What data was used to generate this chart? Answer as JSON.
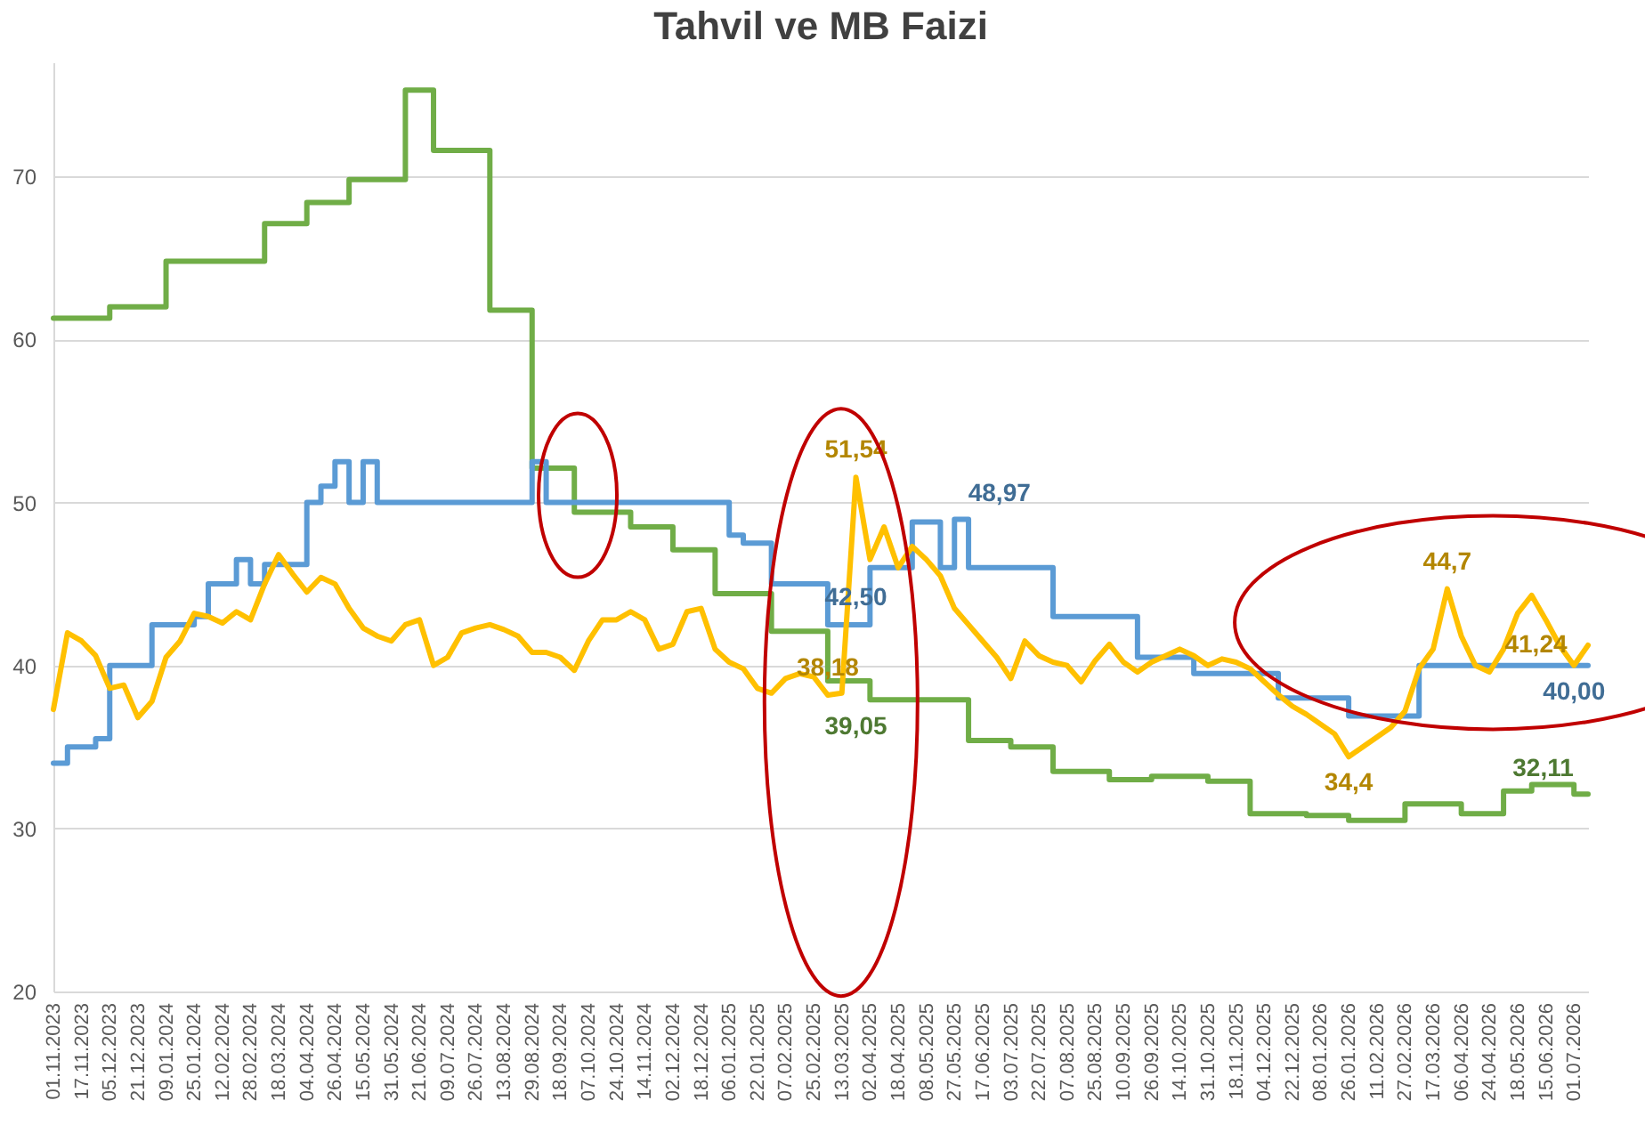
{
  "chart_data": {
    "type": "line",
    "title": "Tahvil ve MB Faizi",
    "categories": [
      "01.11.2023",
      null,
      "17.11.2023",
      null,
      "05.12.2023",
      null,
      "21.12.2023",
      null,
      "09.01.2024",
      null,
      "25.01.2024",
      null,
      "12.02.2024",
      null,
      "28.02.2024",
      null,
      "18.03.2024",
      null,
      "04.04.2024",
      null,
      "26.04.2024",
      null,
      "15.05.2024",
      null,
      "31.05.2024",
      null,
      "21.06.2024",
      null,
      "09.07.2024",
      null,
      "26.07.2024",
      null,
      "13.08.2024",
      null,
      "29.08.2024",
      null,
      "18.09.2024",
      null,
      "07.10.2024",
      null,
      "24.10.2024",
      null,
      "14.11.2024",
      null,
      "02.12.2024",
      null,
      "18.12.2024",
      null,
      "06.01.2025",
      null,
      "22.01.2025",
      null,
      "07.02.2025",
      null,
      "25.02.2025",
      null,
      "13.03.2025",
      null,
      "02.04.2025",
      null,
      "18.04.2025",
      null,
      "08.05.2025",
      null,
      "27.05.2025",
      null,
      "17.06.2025",
      null,
      "03.07.2025",
      null,
      "22.07.2025",
      null,
      "07.08.2025",
      null,
      "25.08.2025",
      null,
      "10.09.2025",
      null,
      "26.09.2025",
      null,
      "14.10.2025",
      null,
      "31.10.2025",
      null,
      "18.11.2025",
      null,
      "04.12.2025",
      null,
      "22.12.2025",
      null,
      "08.01.2026",
      null,
      "26.01.2026",
      null,
      "11.02.2026",
      null,
      "27.02.2026",
      null,
      "17.03.2026",
      null,
      "06.04.2026",
      null,
      "24.04.2026",
      null,
      "18.05.2026",
      null,
      "15.06.2026",
      null,
      "01.07.2026",
      null
    ],
    "series": [
      {
        "type": "step",
        "color": "#70ad47",
        "values": [
          61.3,
          61.3,
          61.3,
          61.3,
          62.0,
          62.0,
          62.0,
          62.0,
          64.8,
          64.8,
          64.8,
          64.8,
          64.8,
          64.8,
          64.8,
          67.1,
          67.1,
          67.1,
          68.4,
          68.4,
          68.4,
          69.8,
          69.8,
          69.8,
          69.8,
          75.3,
          75.3,
          71.6,
          71.6,
          71.6,
          71.6,
          61.8,
          61.8,
          61.8,
          52.1,
          52.1,
          52.1,
          49.4,
          49.4,
          49.4,
          49.4,
          48.5,
          48.5,
          48.5,
          47.1,
          47.1,
          47.1,
          44.4,
          44.4,
          44.4,
          44.4,
          42.1,
          42.1,
          42.1,
          42.1,
          39.05,
          39.05,
          39.05,
          37.9,
          37.9,
          37.9,
          37.9,
          37.9,
          37.9,
          37.9,
          35.4,
          35.4,
          35.4,
          35.0,
          35.0,
          35.0,
          33.5,
          33.5,
          33.5,
          33.5,
          33.0,
          33.0,
          33.0,
          33.2,
          33.2,
          33.2,
          33.2,
          32.9,
          32.9,
          32.9,
          30.9,
          30.9,
          30.9,
          30.9,
          30.8,
          30.8,
          30.8,
          30.5,
          30.5,
          30.5,
          30.5,
          31.5,
          31.5,
          31.5,
          31.5,
          30.9,
          30.9,
          30.9,
          32.3,
          32.3,
          32.7,
          32.7,
          32.7,
          32.11,
          32.11
        ],
        "value_labels": [
          null,
          null,
          null,
          null,
          null,
          null,
          null,
          null,
          null,
          null,
          null,
          null,
          null,
          null,
          null,
          null,
          null,
          null,
          null,
          null,
          null,
          null,
          null,
          null,
          null,
          null,
          null,
          null,
          null,
          null,
          null,
          null,
          null,
          null,
          null,
          null,
          null,
          null,
          null,
          null,
          null,
          null,
          null,
          null,
          null,
          null,
          null,
          null,
          null,
          null,
          null,
          null,
          null,
          null,
          null,
          null,
          null,
          "39,05",
          null,
          null,
          null,
          null,
          null,
          null,
          null,
          null,
          null,
          null,
          null,
          null,
          null,
          null,
          null,
          null,
          null,
          null,
          null,
          null,
          null,
          null,
          null,
          null,
          null,
          null,
          null,
          null,
          null,
          null,
          null,
          null,
          null,
          null,
          null,
          null,
          null,
          null,
          null,
          null,
          null,
          null,
          null,
          null,
          null,
          null,
          null,
          null,
          null,
          null,
          null,
          "32,11"
        ]
      },
      {
        "type": "step",
        "color": "#5b9bd5",
        "values": [
          34.0,
          35.0,
          35.0,
          35.5,
          40.0,
          40.0,
          40.0,
          42.5,
          42.5,
          42.5,
          43.0,
          45.0,
          45.0,
          46.5,
          45.0,
          46.2,
          46.2,
          46.2,
          50.0,
          51.0,
          52.5,
          50.0,
          52.5,
          50.0,
          50.0,
          50.0,
          50.0,
          50.0,
          50.0,
          50.0,
          50.0,
          50.0,
          50.0,
          50.0,
          52.5,
          50.0,
          50.0,
          50.0,
          50.0,
          50.0,
          50.0,
          50.0,
          50.0,
          50.0,
          50.0,
          50.0,
          50.0,
          50.0,
          48.0,
          47.5,
          47.5,
          45.0,
          45.0,
          45.0,
          45.0,
          42.5,
          42.5,
          42.5,
          46.0,
          46.0,
          46.0,
          48.8,
          48.8,
          46.0,
          48.97,
          46.0,
          46.0,
          46.0,
          46.0,
          46.0,
          46.0,
          43.0,
          43.0,
          43.0,
          43.0,
          43.0,
          43.0,
          40.5,
          40.5,
          40.5,
          40.5,
          39.5,
          39.5,
          39.5,
          39.5,
          39.5,
          39.5,
          38.0,
          38.0,
          38.0,
          38.0,
          38.0,
          36.9,
          36.9,
          36.9,
          36.9,
          36.9,
          40.0,
          40.0,
          40.0,
          40.0,
          40.0,
          40.0,
          40.0,
          40.0,
          40.0,
          40.0,
          40.0,
          40.0,
          40.0
        ],
        "value_labels": [
          null,
          null,
          null,
          null,
          null,
          null,
          null,
          null,
          null,
          null,
          null,
          null,
          null,
          null,
          null,
          null,
          null,
          null,
          null,
          null,
          null,
          null,
          null,
          null,
          null,
          null,
          null,
          null,
          null,
          null,
          null,
          null,
          null,
          null,
          null,
          null,
          null,
          null,
          null,
          null,
          null,
          null,
          null,
          null,
          null,
          null,
          null,
          null,
          null,
          null,
          null,
          null,
          null,
          null,
          null,
          null,
          null,
          "42,50",
          null,
          null,
          null,
          null,
          null,
          null,
          "48,97",
          null,
          null,
          null,
          null,
          null,
          null,
          null,
          null,
          null,
          null,
          null,
          null,
          null,
          null,
          null,
          null,
          null,
          null,
          null,
          null,
          null,
          null,
          null,
          null,
          null,
          null,
          null,
          null,
          null,
          null,
          null,
          null,
          null,
          null,
          null,
          null,
          null,
          null,
          null,
          null,
          null,
          null,
          null,
          "40,00",
          null
        ]
      },
      {
        "type": "line",
        "color": "#ffc000",
        "values": [
          37.3,
          42.0,
          41.5,
          40.6,
          38.6,
          38.8,
          36.8,
          37.8,
          40.5,
          41.5,
          43.2,
          43.0,
          42.6,
          43.3,
          42.8,
          45.0,
          46.8,
          45.6,
          44.5,
          45.4,
          45.0,
          43.5,
          42.3,
          41.8,
          41.5,
          42.5,
          42.8,
          40.0,
          40.5,
          42.0,
          42.3,
          42.5,
          42.2,
          41.8,
          40.8,
          40.8,
          40.5,
          39.7,
          41.5,
          42.8,
          42.8,
          43.3,
          42.8,
          41.0,
          41.3,
          43.3,
          43.5,
          41.0,
          40.2,
          39.8,
          38.6,
          38.3,
          39.2,
          39.5,
          39.3,
          38.18,
          38.3,
          51.54,
          46.5,
          48.5,
          46.0,
          47.3,
          46.5,
          45.5,
          43.5,
          42.5,
          41.5,
          40.5,
          39.2,
          41.5,
          40.6,
          40.2,
          40.0,
          39.0,
          40.3,
          41.3,
          40.2,
          39.6,
          40.2,
          40.6,
          41.0,
          40.6,
          40.0,
          40.4,
          40.2,
          39.8,
          39.0,
          38.2,
          37.5,
          37.0,
          36.4,
          35.8,
          34.4,
          35.0,
          35.6,
          36.2,
          37.2,
          39.8,
          41.0,
          44.7,
          41.8,
          40.0,
          39.6,
          41.0,
          43.2,
          44.3,
          42.8,
          41.2,
          40.0,
          41.24
        ],
        "value_labels": [
          null,
          null,
          null,
          null,
          null,
          null,
          null,
          null,
          null,
          null,
          null,
          null,
          null,
          null,
          null,
          null,
          null,
          null,
          null,
          null,
          null,
          null,
          null,
          null,
          null,
          null,
          null,
          null,
          null,
          null,
          null,
          null,
          null,
          null,
          null,
          null,
          null,
          null,
          null,
          null,
          null,
          null,
          null,
          null,
          null,
          null,
          null,
          null,
          null,
          null,
          null,
          null,
          null,
          null,
          null,
          "38,18",
          null,
          "51,54",
          null,
          null,
          null,
          null,
          null,
          null,
          null,
          null,
          null,
          null,
          null,
          null,
          null,
          null,
          null,
          null,
          null,
          null,
          null,
          null,
          null,
          null,
          null,
          null,
          null,
          null,
          null,
          null,
          null,
          null,
          null,
          null,
          null,
          null,
          "34,4",
          null,
          null,
          null,
          null,
          null,
          null,
          "44,7",
          null,
          null,
          null,
          null,
          null,
          null,
          null,
          null,
          null,
          "41,24"
        ]
      }
    ],
    "ylim": [
      20,
      77
    ],
    "yticks": [
      20,
      30,
      40,
      50,
      60,
      70
    ],
    "grid": "y"
  }
}
